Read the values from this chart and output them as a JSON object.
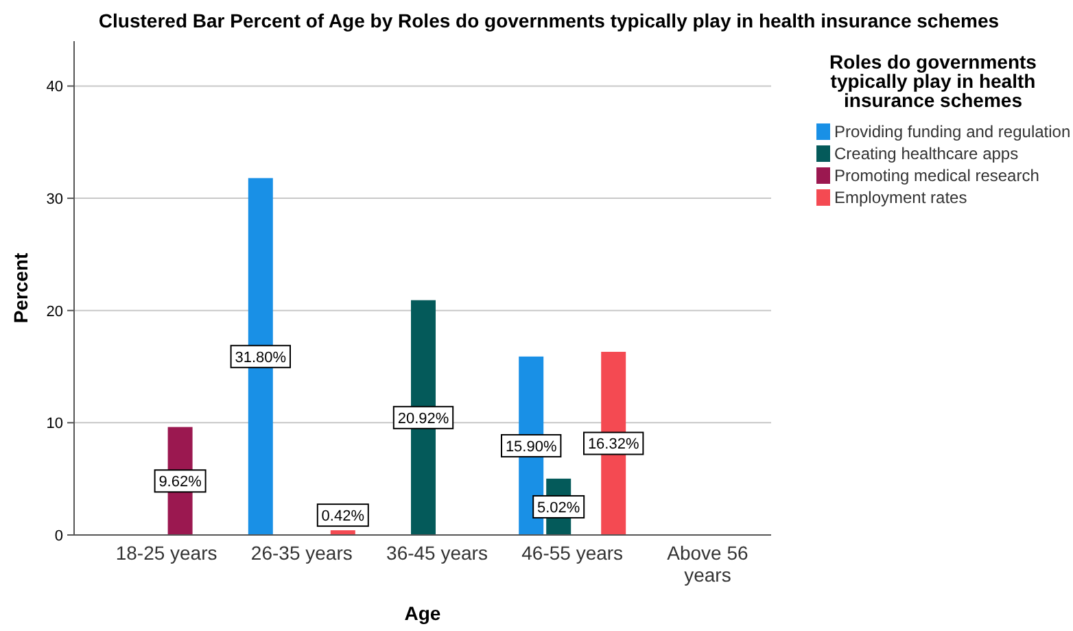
{
  "chart_data": {
    "type": "bar",
    "title": "Clustered Bar Percent of Age by Roles do governments typically play in health insurance schemes",
    "xlabel": "Age",
    "ylabel": "Percent",
    "legend_title": "Roles do governments typically play in health insurance schemes",
    "categories": [
      "18-25 years",
      "26-35 years",
      "36-45 years",
      "46-55 years",
      "Above 56 years"
    ],
    "series": [
      {
        "name": "Providing funding and regulation",
        "color": "#1990e6",
        "values": [
          null,
          31.8,
          null,
          15.9,
          null
        ],
        "value_labels": [
          null,
          "31.80%",
          null,
          "15.90%",
          null
        ]
      },
      {
        "name": "Creating healthcare apps",
        "color": "#045a5a",
        "values": [
          null,
          null,
          20.92,
          5.02,
          null
        ],
        "value_labels": [
          null,
          null,
          "20.92%",
          "5.02%",
          null
        ]
      },
      {
        "name": "Promoting medical research",
        "color": "#9b1850",
        "values": [
          9.62,
          null,
          null,
          null,
          null
        ],
        "value_labels": [
          "9.62%",
          null,
          null,
          null,
          null
        ]
      },
      {
        "name": "Employment rates",
        "color": "#f44a52",
        "values": [
          null,
          0.42,
          null,
          16.32,
          null
        ],
        "value_labels": [
          null,
          "0.42%",
          null,
          "16.32%",
          null
        ]
      }
    ],
    "ylim": [
      0,
      44
    ],
    "yticks": [
      0,
      10,
      20,
      30,
      40
    ],
    "grid": "y",
    "legend": "right"
  }
}
